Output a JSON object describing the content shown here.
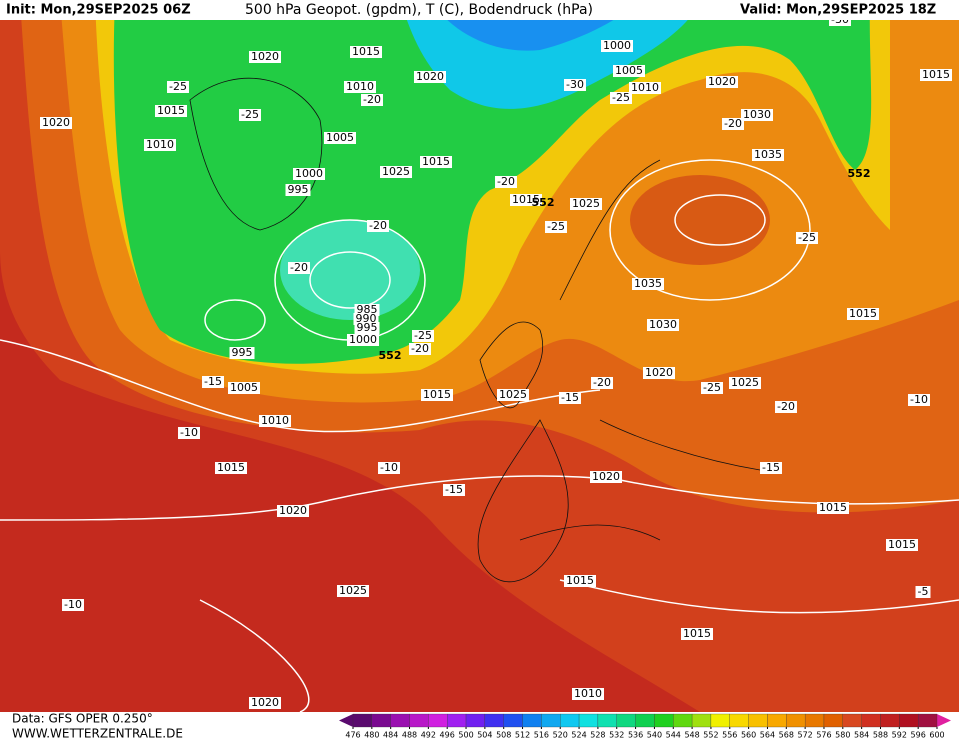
{
  "header": {
    "init": "Init: Mon,29SEP2025 06Z",
    "title": "500 hPa Geopot. (gpdm), T (C), Bodendruck (hPa)",
    "valid": "Valid: Mon,29SEP2025 18Z"
  },
  "footer": {
    "source": "Data: GFS OPER 0.250°",
    "site": "WWW.WETTERZENTRALE.DE"
  },
  "map": {
    "isobar_labels": [
      1020,
      1015,
      1000,
      1005,
      1010,
      1020,
      1015,
      1010,
      1020,
      1015,
      1020,
      1010,
      1005,
      1030,
      1035,
      1025,
      1015,
      1000,
      995,
      1015,
      1025,
      1035,
      985,
      990,
      995,
      1000,
      995,
      1030,
      1015,
      1025,
      1020,
      1005,
      1015,
      1025,
      1010,
      1015,
      1020,
      1020,
      1015,
      1015,
      1025,
      1015,
      1015,
      1010,
      1020
    ],
    "temperature_labels": [
      -30,
      -25,
      -25,
      -20,
      -30,
      -25,
      -20,
      -20,
      -20,
      -25,
      -25,
      -20,
      -25,
      -20,
      -15,
      -20,
      -15,
      -25,
      -20,
      -10,
      -10,
      -10,
      -15,
      -15,
      -10,
      -5
    ],
    "geopotential_labels": [
      552,
      552,
      552
    ]
  },
  "colorbar": {
    "ticks": [
      476,
      480,
      484,
      488,
      492,
      496,
      500,
      504,
      508,
      512,
      516,
      520,
      524,
      528,
      532,
      536,
      540,
      544,
      548,
      552,
      556,
      560,
      564,
      568,
      572,
      576,
      580,
      584,
      588,
      592,
      596,
      600
    ],
    "colors": [
      "#5a0a6e",
      "#7a0a90",
      "#9a10b0",
      "#b818c8",
      "#d020e0",
      "#a020f0",
      "#7020f0",
      "#4030f0",
      "#2050f0",
      "#1080f0",
      "#10a8f0",
      "#10c8f0",
      "#10e0e0",
      "#10e0b0",
      "#10d880",
      "#10d050",
      "#20d020",
      "#60d810",
      "#a0e010",
      "#f0f000",
      "#f8d800",
      "#f8c000",
      "#f8a800",
      "#f09000",
      "#e87800",
      "#e06000",
      "#d84820",
      "#d03020",
      "#c02020",
      "#b01020",
      "#a01040"
    ]
  }
}
